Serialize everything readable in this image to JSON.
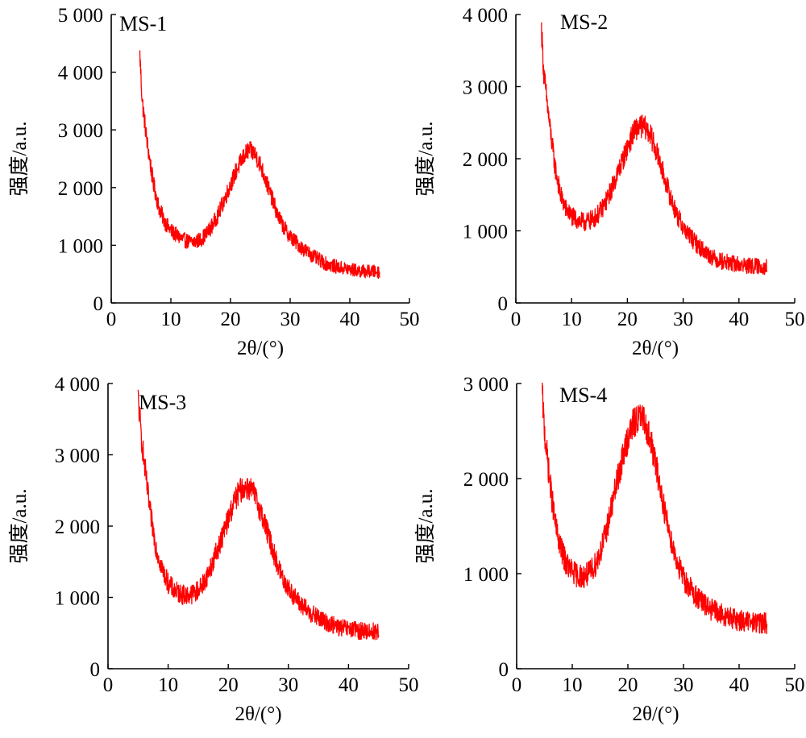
{
  "colors": {
    "series": "#ff0000",
    "axis": "#000000"
  },
  "chart_data": [
    {
      "type": "line",
      "title": "MS-1",
      "xlabel": "2θ/(°)",
      "ylabel": "强度/a.u.",
      "xlim": [
        0,
        50
      ],
      "ylim": [
        0,
        5000
      ],
      "xticks": [
        0,
        10,
        20,
        30,
        40,
        50
      ],
      "xtick_labels": [
        "0",
        "10",
        "20",
        "30",
        "40",
        "50"
      ],
      "yticks": [
        0,
        1000,
        2000,
        3000,
        4000,
        5000
      ],
      "ytick_labels": [
        "0",
        "1 000",
        "2 000",
        "3 000",
        "4 000",
        "5 000"
      ],
      "grid": false,
      "noise": 130,
      "series": [
        {
          "x": [
            4.8,
            5.2,
            6,
            7,
            8,
            9,
            10,
            11,
            12,
            13,
            14,
            15,
            16,
            17,
            18,
            19,
            20,
            21,
            22,
            23,
            24,
            25,
            26,
            27,
            28,
            29,
            30,
            32,
            34,
            36,
            38,
            40,
            42,
            45
          ],
          "y": [
            4300,
            3500,
            2800,
            2100,
            1650,
            1400,
            1250,
            1170,
            1100,
            1060,
            1060,
            1100,
            1200,
            1350,
            1550,
            1800,
            2050,
            2300,
            2500,
            2650,
            2600,
            2400,
            2100,
            1800,
            1500,
            1300,
            1150,
            950,
            800,
            680,
            620,
            580,
            550,
            540
          ]
        }
      ]
    },
    {
      "type": "line",
      "title": "MS-2",
      "xlabel": "2θ/(°)",
      "ylabel": "强度/a.u.",
      "xlim": [
        0,
        50
      ],
      "ylim": [
        0,
        4000
      ],
      "xticks": [
        0,
        10,
        20,
        30,
        40,
        50
      ],
      "xtick_labels": [
        "0",
        "10",
        "20",
        "30",
        "40",
        "50"
      ],
      "yticks": [
        0,
        1000,
        2000,
        3000,
        4000
      ],
      "ytick_labels": [
        "0",
        "1 000",
        "2 000",
        "3 000",
        "4 000"
      ],
      "grid": false,
      "noise": 130,
      "series": [
        {
          "x": [
            4.6,
            5.0,
            6,
            7,
            8,
            9,
            10,
            11,
            12,
            13,
            14,
            15,
            16,
            17,
            18,
            19,
            20,
            21,
            22,
            23,
            24,
            25,
            26,
            27,
            28,
            29,
            30,
            32,
            34,
            36,
            38,
            40,
            42,
            45
          ],
          "y": [
            3800,
            3200,
            2500,
            1900,
            1500,
            1300,
            1200,
            1150,
            1120,
            1130,
            1170,
            1250,
            1380,
            1550,
            1750,
            1950,
            2150,
            2350,
            2450,
            2450,
            2350,
            2150,
            1900,
            1650,
            1400,
            1200,
            1050,
            850,
            700,
            600,
            560,
            530,
            510,
            500
          ]
        }
      ]
    },
    {
      "type": "line",
      "title": "MS-3",
      "xlabel": "2θ/(°)",
      "ylabel": "强度/a.u.",
      "xlim": [
        0,
        50
      ],
      "ylim": [
        0,
        4000
      ],
      "xticks": [
        0,
        10,
        20,
        30,
        40,
        50
      ],
      "xtick_labels": [
        "0",
        "10",
        "20",
        "30",
        "40",
        "50"
      ],
      "yticks": [
        0,
        1000,
        2000,
        3000,
        4000
      ],
      "ytick_labels": [
        "0",
        "1 000",
        "2 000",
        "3 000",
        "4 000"
      ],
      "grid": false,
      "noise": 140,
      "series": [
        {
          "x": [
            5.0,
            5.5,
            6,
            7,
            8,
            9,
            10,
            11,
            12,
            13,
            14,
            15,
            16,
            17,
            18,
            19,
            20,
            21,
            22,
            23,
            24,
            25,
            26,
            27,
            28,
            29,
            30,
            32,
            34,
            36,
            38,
            40,
            42,
            45
          ],
          "y": [
            3800,
            3300,
            2900,
            2200,
            1700,
            1400,
            1200,
            1100,
            1050,
            1030,
            1050,
            1100,
            1220,
            1400,
            1620,
            1850,
            2100,
            2350,
            2500,
            2550,
            2500,
            2300,
            2050,
            1780,
            1500,
            1280,
            1120,
            900,
            760,
            660,
            590,
            550,
            530,
            520
          ]
        }
      ]
    },
    {
      "type": "line",
      "title": "MS-4",
      "xlabel": "2θ/(°)",
      "ylabel": "强度/a.u.",
      "xlim": [
        0,
        50
      ],
      "ylim": [
        0,
        3000
      ],
      "xticks": [
        0,
        10,
        20,
        30,
        40,
        50
      ],
      "xtick_labels": [
        "0",
        "10",
        "20",
        "30",
        "40",
        "50"
      ],
      "yticks": [
        0,
        1000,
        2000,
        3000
      ],
      "ytick_labels": [
        "0",
        "1 000",
        "2 000",
        "3 000"
      ],
      "grid": false,
      "noise": 130,
      "series": [
        {
          "x": [
            4.6,
            5.0,
            6,
            7,
            8,
            9,
            10,
            11,
            12,
            13,
            14,
            15,
            16,
            17,
            18,
            19,
            20,
            21,
            22,
            23,
            24,
            25,
            26,
            27,
            28,
            29,
            30,
            32,
            34,
            36,
            38,
            40,
            42,
            45
          ],
          "y": [
            2900,
            2500,
            1950,
            1500,
            1250,
            1100,
            1020,
            980,
            970,
            1000,
            1080,
            1220,
            1420,
            1680,
            1950,
            2200,
            2420,
            2580,
            2650,
            2600,
            2420,
            2150,
            1850,
            1550,
            1300,
            1100,
            950,
            780,
            660,
            590,
            540,
            510,
            490,
            480
          ]
        }
      ]
    }
  ]
}
